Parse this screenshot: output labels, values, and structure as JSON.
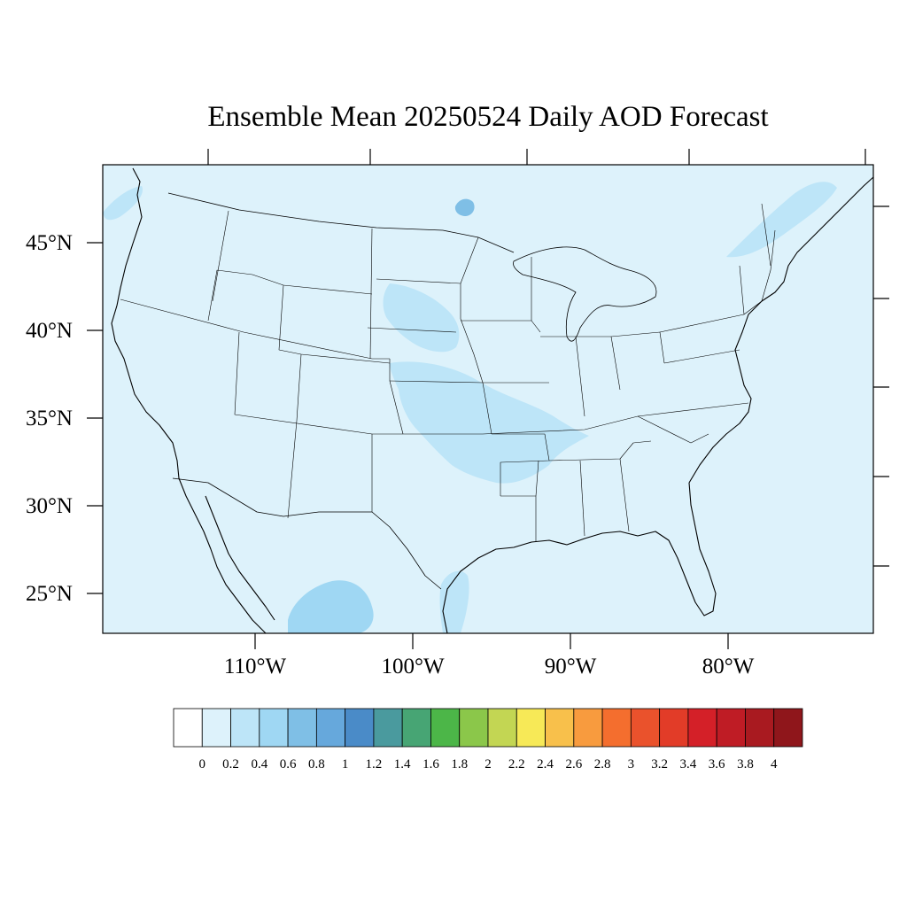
{
  "title": "Ensemble Mean 20250524 Daily AOD Forecast",
  "map": {
    "background_color": "#ddf2fb",
    "boundary_color": "#000000",
    "lat_labels": [
      "45°N",
      "40°N",
      "35°N",
      "30°N",
      "25°N"
    ],
    "lon_labels": [
      "110°W",
      "100°W",
      "90°W",
      "80°W"
    ]
  },
  "aod_plumes": [
    {
      "name": "central-plains-plume",
      "level": "0.2-0.4",
      "color": "#bde5f8"
    },
    {
      "name": "northern-plains-plume",
      "level": "0.2-0.4",
      "color": "#bde5f8"
    },
    {
      "name": "mexico-plume",
      "level": "0.4-0.6",
      "color": "#9fd7f3"
    },
    {
      "name": "lake-superior-spot",
      "level": "0.6-0.8",
      "color": "#7fbfe6"
    }
  ],
  "colorbar": {
    "bins": [
      {
        "color": "#ffffff"
      },
      {
        "color": "#ddf2fb"
      },
      {
        "color": "#bde5f8"
      },
      {
        "color": "#9fd7f3"
      },
      {
        "color": "#7fbfe6"
      },
      {
        "color": "#66a8dc"
      },
      {
        "color": "#4a8bc8"
      },
      {
        "color": "#4a9a9e"
      },
      {
        "color": "#47a574"
      },
      {
        "color": "#4cb648"
      },
      {
        "color": "#8bc74a"
      },
      {
        "color": "#c3d653"
      },
      {
        "color": "#f7e957"
      },
      {
        "color": "#f8c04b"
      },
      {
        "color": "#f89b3e"
      },
      {
        "color": "#f46e2e"
      },
      {
        "color": "#ea522c"
      },
      {
        "color": "#e23c28"
      },
      {
        "color": "#d42028"
      },
      {
        "color": "#bf1c25"
      },
      {
        "color": "#a91a20"
      },
      {
        "color": "#8f161b"
      }
    ],
    "labels": [
      "0",
      "0.2",
      "0.4",
      "0.6",
      "0.8",
      "1",
      "1.2",
      "1.4",
      "1.6",
      "1.8",
      "2",
      "2.2",
      "2.4",
      "2.6",
      "2.8",
      "3",
      "3.2",
      "3.4",
      "3.6",
      "3.8",
      "4"
    ]
  }
}
